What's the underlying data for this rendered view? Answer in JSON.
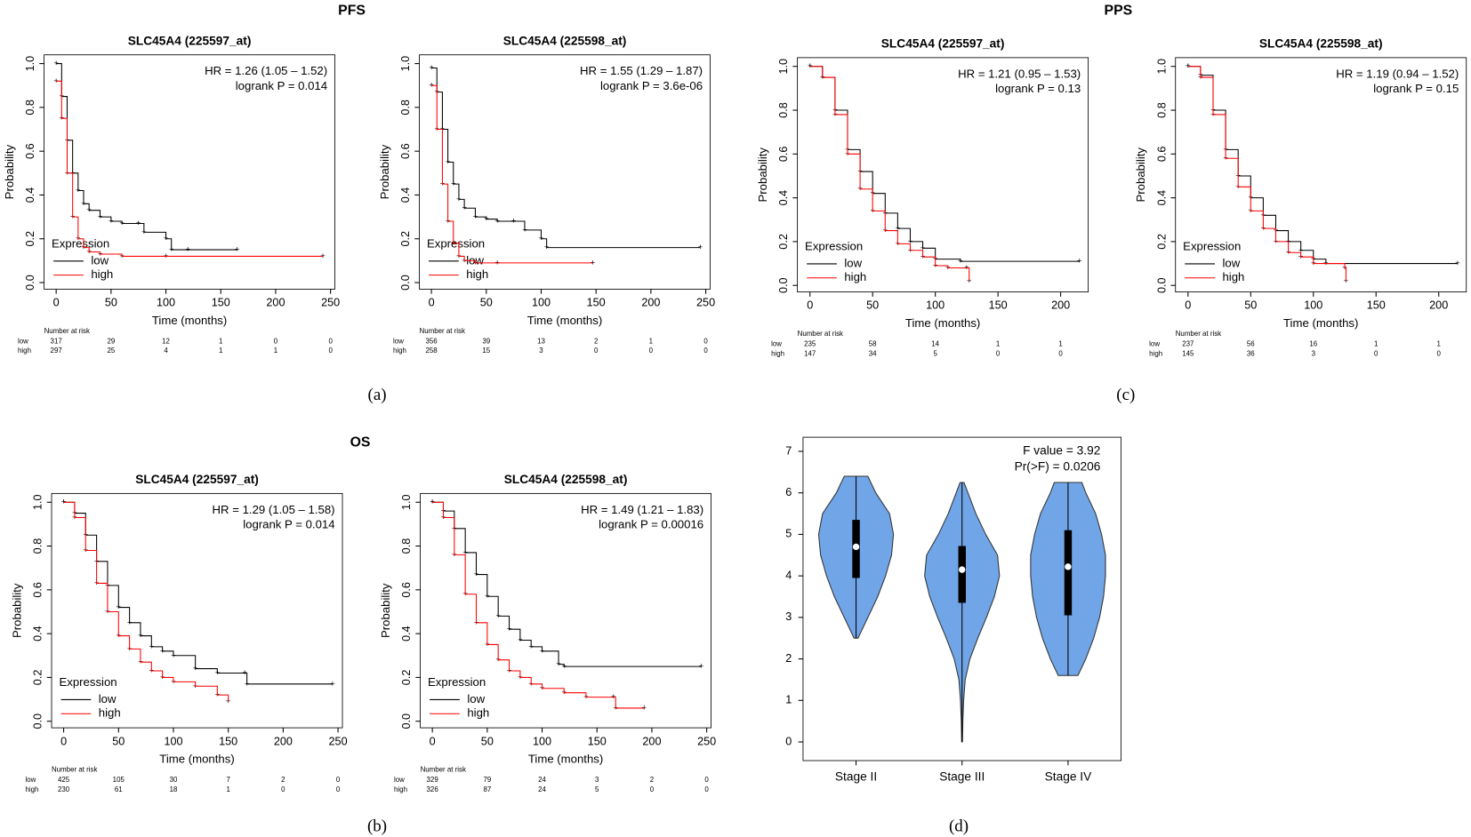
{
  "section_titles": [
    "PFS",
    "PPS",
    "OS"
  ],
  "panel_labels": [
    "(a)",
    "(c)",
    "(b)",
    "(d)"
  ],
  "chart_data": [
    {
      "type": "km",
      "title": "SLC45A4 (225597_at)",
      "hr": "HR = 1.26 (1.05 – 1.52)",
      "logrank": "logrank P = 0.014",
      "xlabel": "Time (months)",
      "ylabel": "Probability",
      "legend_title": "Expression",
      "risk_title": "Number at risk",
      "xlim": [
        -11,
        254
      ],
      "ylim": [
        -0.03,
        1.04
      ],
      "xticks": [
        0,
        50,
        100,
        150,
        200,
        250
      ],
      "yticks": [
        {
          "value": 0,
          "label": "0.0"
        },
        {
          "value": 0.2,
          "label": "0.2"
        },
        {
          "value": 0.4,
          "label": "0.4"
        },
        {
          "value": 0.6,
          "label": "0.6"
        },
        {
          "value": 0.8,
          "label": "0.8"
        },
        {
          "value": 1,
          "label": "1.0"
        }
      ],
      "series": [
        {
          "name": "low",
          "color": "#000000",
          "x": [
            0,
            5,
            10,
            15,
            20,
            25,
            30,
            40,
            50,
            60,
            75,
            80,
            100,
            105,
            120,
            165
          ],
          "values": [
            1,
            0.85,
            0.65,
            0.5,
            0.42,
            0.36,
            0.33,
            0.3,
            0.28,
            0.27,
            0.27,
            0.23,
            0.2,
            0.15,
            0.15,
            0.15
          ],
          "at_risk": [
            317,
            29,
            12,
            1,
            0,
            0
          ]
        },
        {
          "name": "high",
          "color": "#ff0000",
          "x": [
            0,
            5,
            10,
            15,
            20,
            25,
            30,
            40,
            60,
            100,
            243
          ],
          "values": [
            0.92,
            0.75,
            0.5,
            0.3,
            0.2,
            0.16,
            0.14,
            0.13,
            0.12,
            0.12,
            0.12
          ],
          "at_risk": [
            297,
            25,
            4,
            1,
            1,
            0
          ]
        }
      ]
    },
    {
      "type": "km",
      "title": "SLC45A4 (225598_at)",
      "hr": "HR = 1.55 (1.29 – 1.87)",
      "logrank": "logrank P = 3.6e-06",
      "xlabel": "Time (months)",
      "ylabel": "Probability",
      "legend_title": "Expression",
      "risk_title": "Number at risk",
      "xlim": [
        -11,
        254
      ],
      "ylim": [
        -0.03,
        1.04
      ],
      "xticks": [
        0,
        50,
        100,
        150,
        200,
        250
      ],
      "yticks": [
        {
          "value": 0,
          "label": "0.0"
        },
        {
          "value": 0.2,
          "label": "0.2"
        },
        {
          "value": 0.4,
          "label": "0.4"
        },
        {
          "value": 0.6,
          "label": "0.6"
        },
        {
          "value": 0.8,
          "label": "0.8"
        },
        {
          "value": 1,
          "label": "1.0"
        }
      ],
      "series": [
        {
          "name": "low",
          "color": "#000000",
          "x": [
            0,
            5,
            10,
            15,
            20,
            25,
            30,
            40,
            50,
            60,
            75,
            85,
            100,
            105,
            245
          ],
          "values": [
            0.98,
            0.87,
            0.7,
            0.55,
            0.45,
            0.38,
            0.34,
            0.3,
            0.29,
            0.28,
            0.28,
            0.24,
            0.2,
            0.16,
            0.16
          ],
          "at_risk": [
            356,
            39,
            13,
            2,
            1,
            0
          ]
        },
        {
          "name": "high",
          "color": "#ff0000",
          "x": [
            0,
            5,
            10,
            15,
            20,
            25,
            30,
            40,
            60,
            147
          ],
          "values": [
            0.9,
            0.7,
            0.45,
            0.28,
            0.18,
            0.12,
            0.1,
            0.09,
            0.09,
            0.09
          ],
          "at_risk": [
            258,
            15,
            3,
            0,
            0,
            0
          ]
        }
      ]
    },
    {
      "type": "km",
      "title": "SLC45A4 (225597_at)",
      "hr": "HR = 1.21 (0.95 – 1.53)",
      "logrank": "logrank P = 0.13",
      "xlabel": "Time (months)",
      "ylabel": "Probability",
      "legend_title": "Expression",
      "risk_title": "Number at risk",
      "xlim": [
        -10,
        222
      ],
      "ylim": [
        -0.03,
        1.04
      ],
      "xticks": [
        0,
        50,
        100,
        150,
        200
      ],
      "yticks": [
        {
          "value": 0,
          "label": "0.0"
        },
        {
          "value": 0.2,
          "label": "0.2"
        },
        {
          "value": 0.4,
          "label": "0.4"
        },
        {
          "value": 0.6,
          "label": "0.6"
        },
        {
          "value": 0.8,
          "label": "0.8"
        },
        {
          "value": 1,
          "label": "1.0"
        }
      ],
      "series": [
        {
          "name": "low",
          "color": "#000000",
          "x": [
            0,
            10,
            20,
            30,
            40,
            50,
            60,
            70,
            80,
            90,
            100,
            120,
            215
          ],
          "values": [
            1,
            0.95,
            0.8,
            0.62,
            0.52,
            0.42,
            0.33,
            0.26,
            0.2,
            0.17,
            0.12,
            0.11,
            0.11
          ],
          "at_risk": [
            235,
            58,
            14,
            1,
            1
          ]
        },
        {
          "name": "high",
          "color": "#ff0000",
          "x": [
            0,
            10,
            20,
            30,
            40,
            50,
            60,
            70,
            80,
            90,
            100,
            110,
            125,
            127
          ],
          "values": [
            1,
            0.95,
            0.78,
            0.6,
            0.44,
            0.34,
            0.25,
            0.19,
            0.16,
            0.13,
            0.09,
            0.08,
            0.08,
            0.02
          ],
          "at_risk": [
            147,
            34,
            5,
            0,
            0
          ]
        }
      ]
    },
    {
      "type": "km",
      "title": "SLC45A4 (225598_at)",
      "hr": "HR = 1.19 (0.94 – 1.52)",
      "logrank": "logrank P = 0.15",
      "xlabel": "Time (months)",
      "ylabel": "Probability",
      "legend_title": "Expression",
      "risk_title": "Number at risk",
      "xlim": [
        -10,
        222
      ],
      "ylim": [
        -0.03,
        1.04
      ],
      "xticks": [
        0,
        50,
        100,
        150,
        200
      ],
      "yticks": [
        {
          "value": 0,
          "label": "0.0"
        },
        {
          "value": 0.2,
          "label": "0.2"
        },
        {
          "value": 0.4,
          "label": "0.4"
        },
        {
          "value": 0.6,
          "label": "0.6"
        },
        {
          "value": 0.8,
          "label": "0.8"
        },
        {
          "value": 1,
          "label": "1.0"
        }
      ],
      "series": [
        {
          "name": "low",
          "color": "#000000",
          "x": [
            0,
            10,
            20,
            30,
            40,
            50,
            60,
            70,
            80,
            90,
            100,
            110,
            215
          ],
          "values": [
            1,
            0.96,
            0.8,
            0.62,
            0.5,
            0.4,
            0.32,
            0.25,
            0.2,
            0.16,
            0.12,
            0.1,
            0.1
          ],
          "at_risk": [
            237,
            56,
            16,
            1,
            1
          ]
        },
        {
          "name": "high",
          "color": "#ff0000",
          "x": [
            0,
            10,
            20,
            30,
            40,
            50,
            60,
            70,
            80,
            90,
            100,
            125,
            126
          ],
          "values": [
            1,
            0.95,
            0.78,
            0.58,
            0.45,
            0.34,
            0.26,
            0.2,
            0.15,
            0.13,
            0.1,
            0.08,
            0.02
          ],
          "at_risk": [
            145,
            36,
            3,
            0,
            0
          ]
        }
      ]
    },
    {
      "type": "km",
      "title": "SLC45A4 (225597_at)",
      "hr": "HR = 1.29 (1.05 – 1.58)",
      "logrank": "logrank P = 0.014",
      "xlabel": "Time (months)",
      "ylabel": "Probability",
      "legend_title": "Expression",
      "risk_title": "Number at risk",
      "xlim": [
        -11,
        254
      ],
      "ylim": [
        -0.03,
        1.04
      ],
      "xticks": [
        0,
        50,
        100,
        150,
        200,
        250
      ],
      "yticks": [
        {
          "value": 0,
          "label": "0.0"
        },
        {
          "value": 0.2,
          "label": "0.2"
        },
        {
          "value": 0.4,
          "label": "0.4"
        },
        {
          "value": 0.6,
          "label": "0.6"
        },
        {
          "value": 0.8,
          "label": "0.8"
        },
        {
          "value": 1,
          "label": "1.0"
        }
      ],
      "series": [
        {
          "name": "low",
          "color": "#000000",
          "x": [
            0,
            10,
            20,
            30,
            40,
            50,
            60,
            70,
            80,
            90,
            100,
            120,
            140,
            165,
            167,
            245
          ],
          "values": [
            1,
            0.95,
            0.85,
            0.73,
            0.62,
            0.52,
            0.45,
            0.39,
            0.34,
            0.32,
            0.3,
            0.24,
            0.22,
            0.22,
            0.17,
            0.17
          ],
          "at_risk": [
            425,
            105,
            30,
            7,
            2,
            0
          ]
        },
        {
          "name": "high",
          "color": "#ff0000",
          "x": [
            0,
            10,
            20,
            30,
            40,
            50,
            60,
            70,
            80,
            90,
            100,
            120,
            140,
            150
          ],
          "values": [
            1,
            0.93,
            0.78,
            0.63,
            0.5,
            0.39,
            0.33,
            0.27,
            0.23,
            0.2,
            0.18,
            0.16,
            0.12,
            0.09
          ],
          "at_risk": [
            230,
            61,
            18,
            1,
            0,
            0
          ]
        }
      ]
    },
    {
      "type": "km",
      "title": "SLC45A4 (225598_at)",
      "hr": "HR = 1.49 (1.21 – 1.83)",
      "logrank": "logrank P = 0.00016",
      "xlabel": "Time (months)",
      "ylabel": "Probability",
      "legend_title": "Expression",
      "risk_title": "Number at risk",
      "xlim": [
        -11,
        254
      ],
      "ylim": [
        -0.03,
        1.04
      ],
      "xticks": [
        0,
        50,
        100,
        150,
        200,
        250
      ],
      "yticks": [
        {
          "value": 0,
          "label": "0.0"
        },
        {
          "value": 0.2,
          "label": "0.2"
        },
        {
          "value": 0.4,
          "label": "0.4"
        },
        {
          "value": 0.6,
          "label": "0.6"
        },
        {
          "value": 0.8,
          "label": "0.8"
        },
        {
          "value": 1,
          "label": "1.0"
        }
      ],
      "series": [
        {
          "name": "low",
          "color": "#000000",
          "x": [
            0,
            10,
            20,
            30,
            40,
            50,
            60,
            70,
            80,
            90,
            100,
            115,
            120,
            245
          ],
          "values": [
            1,
            0.96,
            0.88,
            0.77,
            0.67,
            0.57,
            0.48,
            0.42,
            0.37,
            0.34,
            0.32,
            0.26,
            0.25,
            0.25
          ],
          "at_risk": [
            329,
            79,
            24,
            3,
            2,
            0
          ]
        },
        {
          "name": "high",
          "color": "#ff0000",
          "x": [
            0,
            10,
            20,
            30,
            40,
            50,
            60,
            70,
            80,
            90,
            100,
            120,
            140,
            165,
            167,
            193
          ],
          "values": [
            1,
            0.93,
            0.76,
            0.58,
            0.45,
            0.35,
            0.28,
            0.23,
            0.2,
            0.17,
            0.15,
            0.13,
            0.11,
            0.11,
            0.06,
            0.06
          ],
          "at_risk": [
            326,
            87,
            24,
            5,
            0,
            0
          ]
        }
      ]
    },
    {
      "type": "violin",
      "annotations": [
        "F value = 3.92",
        "Pr(>F) = 0.0206"
      ],
      "categories": [
        "Stage II",
        "Stage III",
        "Stage IV"
      ],
      "color": "#70a5e8",
      "ylim": [
        -0.45,
        7.34
      ],
      "yticks": [
        0,
        1,
        2,
        3,
        4,
        5,
        6,
        7
      ],
      "violins": [
        {
          "min": 2.5,
          "q1": 3.95,
          "median": 4.7,
          "q3": 5.35,
          "max": 6.4,
          "y": [
            2.5,
            3,
            3.5,
            4,
            4.5,
            5,
            5.5,
            6,
            6.4
          ],
          "width": [
            0.05,
            0.3,
            0.55,
            0.75,
            0.9,
            0.95,
            0.85,
            0.5,
            0.3
          ]
        },
        {
          "min": 0,
          "q1": 3.35,
          "median": 4.15,
          "q3": 4.72,
          "max": 6.25,
          "y": [
            0,
            0.5,
            1,
            1.5,
            2,
            2.5,
            3,
            3.5,
            4,
            4.5,
            5,
            5.5,
            6,
            6.25
          ],
          "width": [
            0.01,
            0.02,
            0.04,
            0.08,
            0.2,
            0.4,
            0.62,
            0.82,
            0.95,
            0.9,
            0.6,
            0.35,
            0.15,
            0.05
          ]
        },
        {
          "min": 1.6,
          "q1": 3.05,
          "median": 4.22,
          "q3": 5.1,
          "max": 6.25,
          "y": [
            1.6,
            2,
            2.5,
            3,
            3.5,
            4,
            4.5,
            5,
            5.5,
            6,
            6.25
          ],
          "width": [
            0.25,
            0.45,
            0.65,
            0.8,
            0.9,
            0.95,
            0.95,
            0.85,
            0.7,
            0.45,
            0.35
          ]
        }
      ]
    }
  ]
}
